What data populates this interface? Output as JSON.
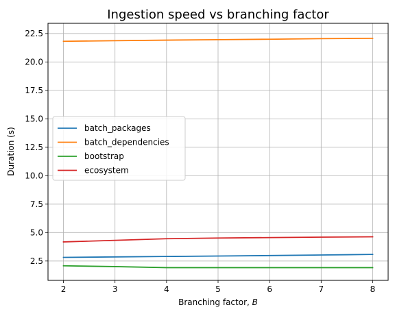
{
  "chart_data": {
    "type": "line",
    "title": "Ingestion speed vs branching factor",
    "xlabel_prefix": "Branching factor, ",
    "xlabel_var": "B",
    "ylabel": "Duration (s)",
    "xlim": [
      1.7,
      8.3
    ],
    "ylim": [
      0.8,
      23.4
    ],
    "xticks": [
      2,
      3,
      4,
      5,
      6,
      7,
      8
    ],
    "yticks": [
      2.5,
      5.0,
      7.5,
      10.0,
      12.5,
      15.0,
      17.5,
      20.0,
      22.5
    ],
    "ytick_labels": [
      "2.5",
      "5.0",
      "7.5",
      "10.0",
      "12.5",
      "15.0",
      "17.5",
      "20.0",
      "22.5"
    ],
    "grid": true,
    "legend_position": "center-left",
    "x": [
      2,
      3,
      4,
      5,
      6,
      7,
      8
    ],
    "series": [
      {
        "name": "batch_packages",
        "color": "#1f77b4",
        "values": [
          2.82,
          2.86,
          2.9,
          2.94,
          2.98,
          3.03,
          3.08
        ]
      },
      {
        "name": "batch_dependencies",
        "color": "#ff7f0e",
        "values": [
          21.82,
          21.87,
          21.92,
          21.96,
          22.0,
          22.05,
          22.08
        ]
      },
      {
        "name": "bootstrap",
        "color": "#2ca02c",
        "values": [
          2.08,
          2.01,
          1.92,
          1.92,
          1.92,
          1.92,
          1.92
        ]
      },
      {
        "name": "ecosystem",
        "color": "#d62728",
        "values": [
          4.18,
          4.32,
          4.46,
          4.52,
          4.56,
          4.6,
          4.63
        ]
      }
    ]
  }
}
